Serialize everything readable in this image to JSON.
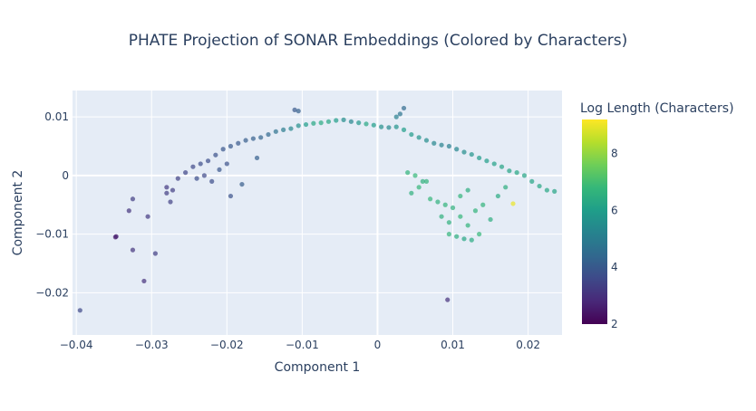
{
  "chart_data": {
    "type": "scatter",
    "title": "PHATE Projection of SONAR Embeddings (Colored by Characters)",
    "xlabel": "Component 1",
    "ylabel": "Component 2",
    "xlim": [
      -0.0405,
      0.0245
    ],
    "ylim": [
      -0.0272,
      0.0145
    ],
    "xticks": [
      -0.04,
      -0.03,
      -0.02,
      -0.01,
      0,
      0.01,
      0.02
    ],
    "xtick_labels": [
      "−0.04",
      "−0.03",
      "−0.02",
      "−0.01",
      "0",
      "0.01",
      "0.02"
    ],
    "yticks": [
      -0.02,
      -0.01,
      0,
      0.01
    ],
    "ytick_labels": [
      "−0.02",
      "−0.01",
      "0",
      "0.01"
    ],
    "grid": true,
    "colorscale": "Viridis",
    "colorbar": {
      "title": "Log Length (Characters)",
      "range": [
        2,
        9.2
      ],
      "ticks": [
        2,
        4,
        6,
        8
      ],
      "tick_labels": [
        "2",
        "4",
        "6",
        "8"
      ]
    },
    "points_x": [
      -0.0395,
      -0.0348,
      -0.0347,
      -0.0325,
      -0.031,
      -0.0295,
      -0.0305,
      -0.033,
      -0.0325,
      -0.028,
      -0.0272,
      -0.0265,
      -0.0255,
      -0.0245,
      -0.0235,
      -0.0225,
      -0.0215,
      -0.0205,
      -0.0195,
      -0.0185,
      -0.0175,
      -0.0165,
      -0.0155,
      -0.0145,
      -0.0135,
      -0.0125,
      -0.0115,
      -0.0105,
      -0.0095,
      -0.0085,
      -0.0075,
      -0.0065,
      -0.0055,
      -0.0045,
      -0.0035,
      -0.0025,
      -0.0015,
      -0.0005,
      0.0005,
      0.0015,
      0.0025,
      0.0035,
      0.0045,
      0.0055,
      0.0065,
      0.0075,
      0.0085,
      0.0095,
      0.0105,
      0.0115,
      0.0125,
      0.0135,
      0.0145,
      0.0155,
      0.0165,
      0.0175,
      0.0185,
      0.0195,
      0.0205,
      0.0215,
      0.0225,
      0.0235,
      -0.011,
      -0.0105,
      0.0035,
      0.003,
      0.0025,
      0.0093,
      0.018,
      0.0095,
      0.0105,
      0.0115,
      0.0125,
      0.0135,
      0.0095,
      0.011,
      0.013,
      0.007,
      0.008,
      0.009,
      0.01,
      0.011,
      0.012,
      0.014,
      0.016,
      0.017,
      0.006,
      0.005,
      0.004,
      0.0045,
      0.0055,
      0.0065,
      0.0085,
      0.012,
      0.015,
      -0.02,
      -0.016,
      -0.023,
      -0.028,
      -0.0275,
      -0.024,
      -0.021,
      -0.018,
      -0.0195,
      -0.022
    ],
    "points_y": [
      -0.023,
      -0.0105,
      -0.0104,
      -0.0127,
      -0.018,
      -0.0133,
      -0.007,
      -0.006,
      -0.004,
      -0.002,
      -0.0025,
      -0.0005,
      0.0005,
      0.0015,
      0.002,
      0.0025,
      0.0035,
      0.0045,
      0.005,
      0.0055,
      0.006,
      0.0063,
      0.0065,
      0.007,
      0.0075,
      0.0078,
      0.008,
      0.0085,
      0.0087,
      0.0089,
      0.009,
      0.0092,
      0.0094,
      0.0095,
      0.0092,
      0.009,
      0.0088,
      0.0086,
      0.0083,
      0.0082,
      0.0083,
      0.0078,
      0.007,
      0.0065,
      0.006,
      0.0055,
      0.0052,
      0.005,
      0.0045,
      0.004,
      0.0036,
      0.003,
      0.0025,
      0.002,
      0.0015,
      0.0008,
      0.0005,
      0.0,
      -0.001,
      -0.0018,
      -0.0025,
      -0.0027,
      0.0112,
      0.011,
      0.0115,
      0.0105,
      0.01,
      -0.0212,
      -0.0048,
      -0.01,
      -0.0104,
      -0.0108,
      -0.011,
      -0.01,
      -0.008,
      -0.007,
      -0.006,
      -0.004,
      -0.0045,
      -0.005,
      -0.0055,
      -0.0035,
      -0.0025,
      -0.005,
      -0.0035,
      -0.002,
      -0.001,
      0.0,
      0.0005,
      -0.003,
      -0.002,
      -0.001,
      -0.007,
      -0.0085,
      -0.0075,
      0.002,
      0.003,
      0.0,
      -0.003,
      -0.0045,
      -0.0005,
      0.001,
      -0.0015,
      -0.0035,
      -0.001
    ],
    "points_color": [
      3.6,
      2.5,
      2.6,
      3.1,
      3.0,
      3.3,
      3.2,
      3.1,
      3.3,
      3.2,
      3.3,
      3.4,
      3.5,
      3.6,
      3.7,
      3.7,
      3.8,
      3.9,
      4.0,
      4.0,
      4.1,
      4.2,
      4.3,
      4.4,
      4.7,
      5.0,
      5.3,
      5.6,
      6.0,
      6.3,
      6.4,
      6.3,
      6.0,
      5.5,
      5.3,
      5.8,
      6.3,
      6.0,
      5.6,
      5.4,
      5.7,
      6.0,
      5.9,
      5.7,
      5.5,
      5.3,
      5.2,
      5.1,
      5.3,
      5.5,
      5.7,
      5.9,
      6.0,
      6.1,
      6.2,
      6.2,
      6.3,
      6.2,
      6.2,
      6.3,
      6.3,
      6.2,
      4.0,
      4.2,
      4.5,
      4.8,
      5.1,
      3.0,
      9.0,
      6.7,
      6.5,
      6.3,
      6.4,
      6.8,
      6.6,
      6.8,
      6.7,
      6.8,
      6.6,
      6.7,
      6.6,
      6.7,
      6.5,
      6.7,
      6.4,
      6.5,
      6.6,
      6.8,
      6.7,
      6.6,
      6.8,
      6.7,
      6.6,
      6.7,
      6.5,
      3.8,
      4.2,
      3.6,
      3.3,
      3.4,
      3.7,
      3.9,
      4.1,
      3.8,
      3.7
    ]
  }
}
